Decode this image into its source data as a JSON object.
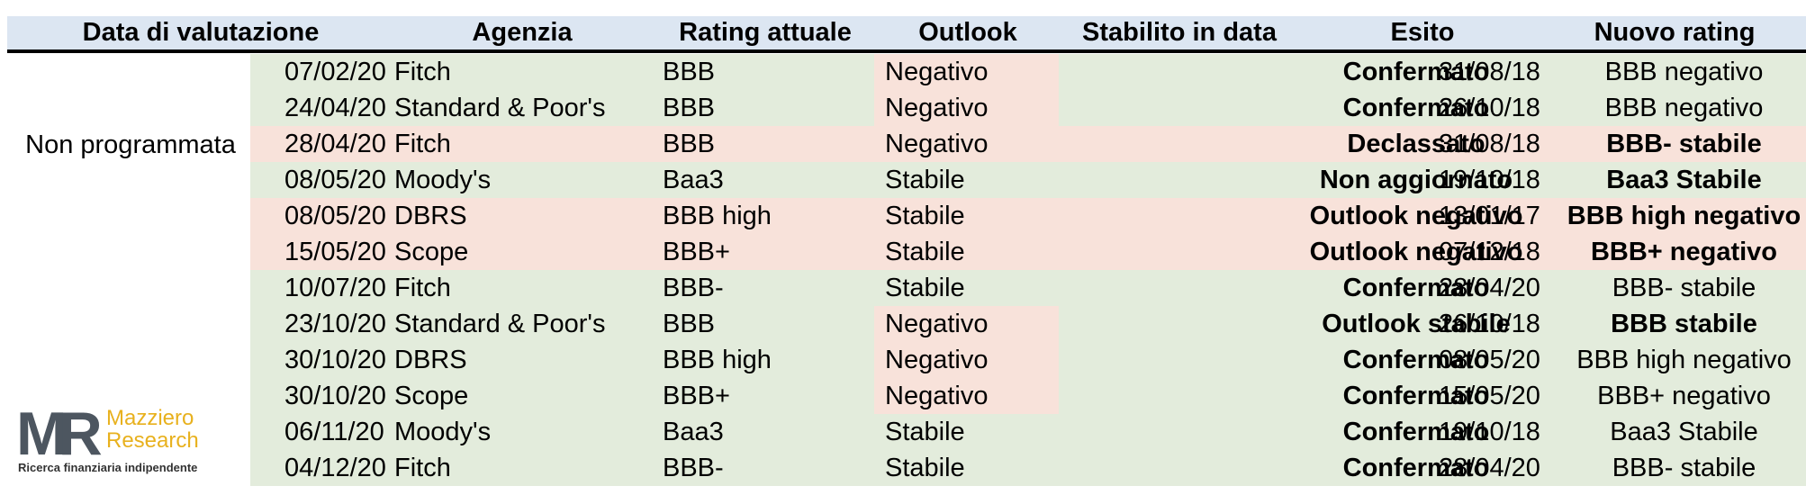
{
  "headers": {
    "date": "Data di valutazione",
    "agency": "Agenzia",
    "rating": "Rating attuale",
    "outlook": "Outlook",
    "since": "Stabilito in data",
    "result": "Esito",
    "new_rating": "Nuovo rating"
  },
  "group_label": "Non programmata",
  "rows": [
    {
      "date": "07/02/20",
      "agency": "Fitch",
      "rating": "BBB",
      "outlook": "Negativo",
      "since": "31/08/18",
      "result": "Confermato",
      "new_rating": "BBB negativo"
    },
    {
      "date": "24/04/20",
      "agency": "Standard & Poor's",
      "rating": "BBB",
      "outlook": "Negativo",
      "since": "26/10/18",
      "result": "Confermato",
      "new_rating": "BBB negativo"
    },
    {
      "date": "28/04/20",
      "agency": "Fitch",
      "rating": "BBB",
      "outlook": "Negativo",
      "since": "31/08/18",
      "result": "Declassato",
      "new_rating": "BBB- stabile"
    },
    {
      "date": "08/05/20",
      "agency": "Moody's",
      "rating": "Baa3",
      "outlook": "Stabile",
      "since": "19/10/18",
      "result": "Non aggiornato",
      "new_rating": "Baa3 Stabile"
    },
    {
      "date": "08/05/20",
      "agency": "DBRS",
      "rating": "BBB high",
      "outlook": "Stabile",
      "since": "13/01/17",
      "result": "Outlook negativo",
      "new_rating": "BBB high negativo"
    },
    {
      "date": "15/05/20",
      "agency": "Scope",
      "rating": "BBB+",
      "outlook": "Stabile",
      "since": "07/12/18",
      "result": "Outlook negativo",
      "new_rating": "BBB+ negativo"
    },
    {
      "date": "10/07/20",
      "agency": "Fitch",
      "rating": "BBB-",
      "outlook": "Stabile",
      "since": "28/04/20",
      "result": "Confermato",
      "new_rating": "BBB- stabile"
    },
    {
      "date": "23/10/20",
      "agency": "Standard & Poor's",
      "rating": "BBB",
      "outlook": "Negativo",
      "since": "26/10/18",
      "result": "Outlook stabile",
      "new_rating": "BBB stabile"
    },
    {
      "date": "30/10/20",
      "agency": "DBRS",
      "rating": "BBB high",
      "outlook": "Negativo",
      "since": "08/05/20",
      "result": "Confermato",
      "new_rating": "BBB high negativo"
    },
    {
      "date": "30/10/20",
      "agency": "Scope",
      "rating": "BBB+",
      "outlook": "Negativo",
      "since": "15/05/20",
      "result": "Confermato",
      "new_rating": "BBB+ negativo"
    },
    {
      "date": "06/11/20",
      "agency": "Moody's",
      "rating": "Baa3",
      "outlook": "Stabile",
      "since": "19/10/18",
      "result": "Confermato",
      "new_rating": "Baa3 Stabile"
    },
    {
      "date": "04/12/20",
      "agency": "Fitch",
      "rating": "BBB-",
      "outlook": "Stabile",
      "since": "28/04/20",
      "result": "Confermato",
      "new_rating": "BBB- stabile"
    }
  ],
  "logo": {
    "letters": "MR",
    "name_line1": "Mazziero",
    "name_line2": "Research",
    "tagline": "Ricerca finanziaria indipendente"
  },
  "colors": {
    "header_bg": "#dce6f2",
    "row_green": "#e3ecdc",
    "row_red": "#f8e2da",
    "logo_gray": "#4d5660",
    "logo_gold": "#e8b11e"
  }
}
